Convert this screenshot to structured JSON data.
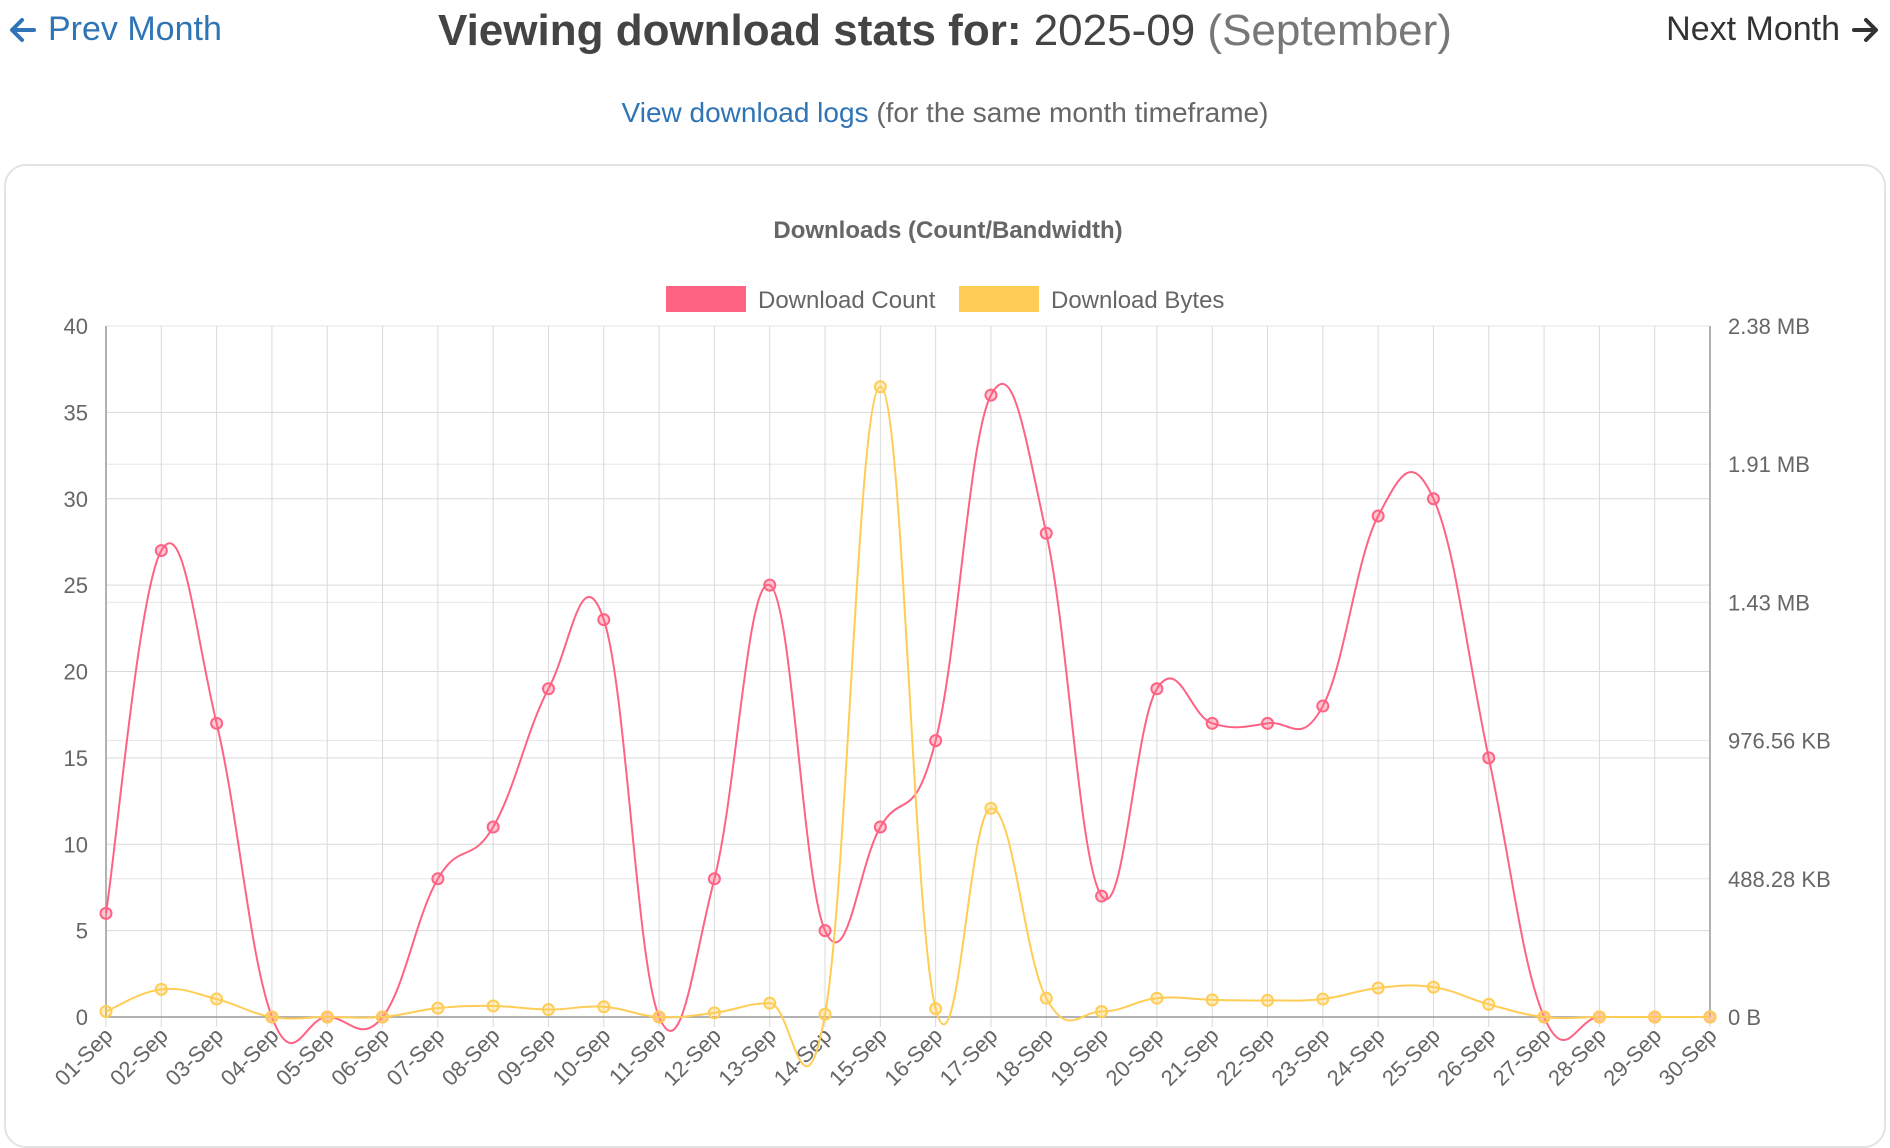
{
  "nav": {
    "prev_label": "Prev Month",
    "next_label": "Next Month"
  },
  "header": {
    "label": "Viewing download stats for:",
    "period": "2025-09",
    "month_name": "(September)"
  },
  "subheader": {
    "link_text": "View download logs",
    "note": "(for the same month timeframe)"
  },
  "chart_data": {
    "type": "line",
    "title": "Downloads (Count/Bandwidth)",
    "legend_position": "top",
    "grid": true,
    "categories": [
      "01-Sep",
      "02-Sep",
      "03-Sep",
      "04-Sep",
      "05-Sep",
      "06-Sep",
      "07-Sep",
      "08-Sep",
      "09-Sep",
      "10-Sep",
      "11-Sep",
      "12-Sep",
      "13-Sep",
      "14-Sep",
      "15-Sep",
      "16-Sep",
      "17-Sep",
      "18-Sep",
      "19-Sep",
      "20-Sep",
      "21-Sep",
      "22-Sep",
      "23-Sep",
      "24-Sep",
      "25-Sep",
      "26-Sep",
      "27-Sep",
      "28-Sep",
      "29-Sep",
      "30-Sep"
    ],
    "y_left": {
      "min": 0,
      "max": 40,
      "ticks": [
        0,
        5,
        10,
        15,
        20,
        25,
        30,
        35,
        40
      ]
    },
    "y_right": {
      "min": 0,
      "max": 2500000,
      "ticks": [
        0,
        500000,
        1000000,
        1500000,
        2000000,
        2500000
      ],
      "tick_labels": [
        "0 B",
        "488.28 KB",
        "976.56 KB",
        "1.43 MB",
        "1.91 MB",
        "2.38 MB"
      ]
    },
    "series": [
      {
        "name": "Download Count",
        "axis": "left",
        "color": "#ff6384",
        "values": [
          6,
          27,
          17,
          0,
          0,
          0,
          8,
          11,
          19,
          23,
          0,
          8,
          25,
          5,
          11,
          16,
          36,
          28,
          7,
          19,
          17,
          17,
          18,
          29,
          30,
          15,
          0,
          0,
          0,
          0
        ]
      },
      {
        "name": "Download Bytes",
        "axis": "right",
        "color": "#ffcd56",
        "values": [
          20000,
          100000,
          65000,
          0,
          0,
          0,
          32000,
          40000,
          27000,
          37000,
          0,
          15000,
          50000,
          10000,
          2280000,
          30000,
          755000,
          68000,
          20000,
          68000,
          62000,
          60000,
          65000,
          105000,
          108000,
          46000,
          0,
          0,
          0,
          0
        ]
      }
    ]
  }
}
